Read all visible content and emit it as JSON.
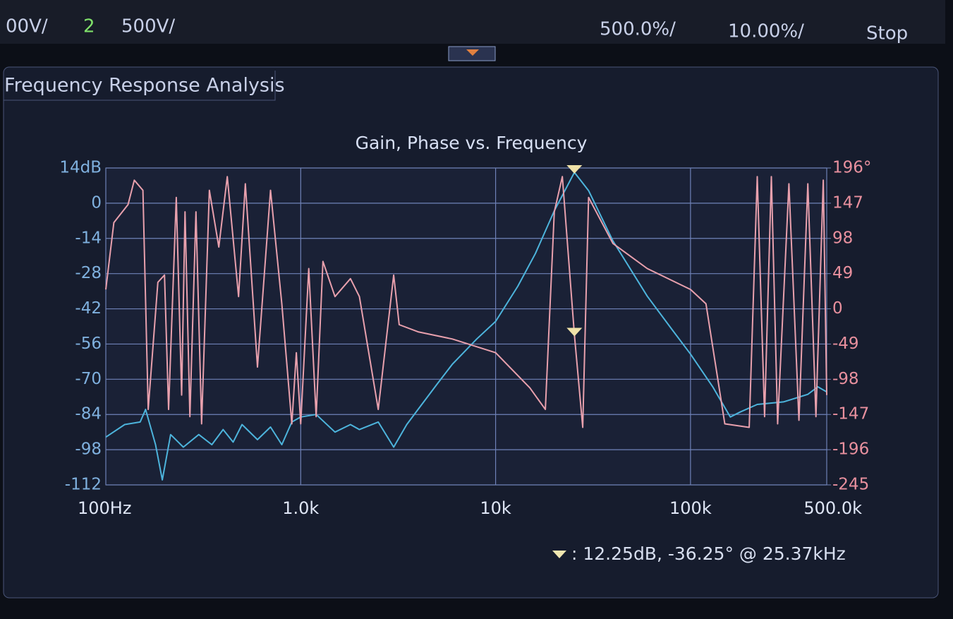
{
  "header": {
    "ch1_scale": "00V/",
    "ch2_number": "2",
    "ch2_scale": "500V/",
    "time_scale": "500.0%/",
    "delay": "10.00%/",
    "run_state": "Stop"
  },
  "panel_title": "Frequency Response Analysis",
  "chart_data": {
    "type": "line",
    "title": "Gain, Phase vs. Frequency",
    "xlog": true,
    "grid": true,
    "xlim": [
      100,
      500000
    ],
    "xticks": [
      {
        "value": 100,
        "label": "100Hz"
      },
      {
        "value": 1000,
        "label": "1.0k"
      },
      {
        "value": 10000,
        "label": "10k"
      },
      {
        "value": 100000,
        "label": "100k"
      },
      {
        "value": 500000,
        "label": "500.0k"
      }
    ],
    "ylim": [
      -112,
      14
    ],
    "yticks": [
      {
        "value": 14,
        "label": "14dB"
      },
      0,
      -14,
      -28,
      -42,
      -56,
      -70,
      -84,
      -98,
      -112
    ],
    "y2lim": [
      -245,
      196
    ],
    "y2ticks": [
      {
        "value": 196,
        "label": "196°"
      },
      147,
      98,
      49,
      0,
      -49,
      -98,
      -147,
      -196,
      -245
    ],
    "series": [
      {
        "color": "#4db4dc",
        "x": [
          100,
          125,
          150,
          160,
          180,
          195,
          215,
          250,
          300,
          350,
          400,
          450,
          500,
          600,
          700,
          800,
          900,
          1000,
          1200,
          1500,
          1800,
          2000,
          2500,
          3000,
          3500,
          4000,
          5000,
          6000,
          8000,
          10000,
          13000,
          16000,
          20000,
          25370,
          30000,
          40000,
          60000,
          80000,
          100000,
          130000,
          160000,
          180000,
          220000,
          300000,
          400000,
          450000,
          500000
        ],
        "values": [
          -93,
          -88,
          -87,
          -82,
          -96,
          -110,
          -92,
          -97,
          -92,
          -96,
          -90,
          -95,
          -88,
          -94,
          -89,
          -96,
          -87,
          -85,
          -84,
          -91,
          -88,
          -90,
          -87,
          -97,
          -88,
          -82,
          -72,
          -64,
          -54,
          -47,
          -33,
          -20,
          -3,
          12.25,
          5,
          -15,
          -37,
          -50,
          -60,
          -73,
          -85,
          -83,
          -80,
          -79,
          -76,
          -73,
          -75
        ]
      },
      {
        "color": "#e8a0ad",
        "axis": "y2",
        "x": [
          100,
          110,
          130,
          140,
          155,
          165,
          185,
          200,
          210,
          230,
          245,
          255,
          270,
          290,
          310,
          340,
          380,
          420,
          480,
          520,
          600,
          700,
          800,
          900,
          950,
          1000,
          1100,
          1200,
          1300,
          1500,
          1800,
          2000,
          2500,
          3000,
          3200,
          4000,
          6000,
          10000,
          15000,
          18000,
          20000,
          22000,
          25370,
          28000,
          30000,
          40000,
          60000,
          100000,
          120000,
          150000,
          200000,
          220000,
          240000,
          260000,
          280000,
          320000,
          360000,
          400000,
          440000,
          480000,
          500000
        ],
        "values": [
          27,
          120,
          145,
          179,
          165,
          -140,
          37,
          47,
          -140,
          155,
          -120,
          135,
          -150,
          135,
          -160,
          165,
          86,
          184,
          17,
          174,
          -81,
          165,
          7,
          -160,
          -61,
          -160,
          56,
          -150,
          66,
          17,
          42,
          17,
          -140,
          47,
          -22,
          -32,
          -42,
          -61,
          -110,
          -140,
          135,
          184,
          -36.25,
          -165,
          155,
          91,
          56,
          27,
          7,
          -160,
          -165,
          184,
          -150,
          184,
          -160,
          174,
          -155,
          174,
          -150,
          179,
          -120
        ]
      }
    ],
    "cursor": {
      "x": 25370,
      "gain": 12.25,
      "phase": -36.25
    },
    "annotation": ": 12.25dB, -36.25° @ 25.37kHz"
  }
}
